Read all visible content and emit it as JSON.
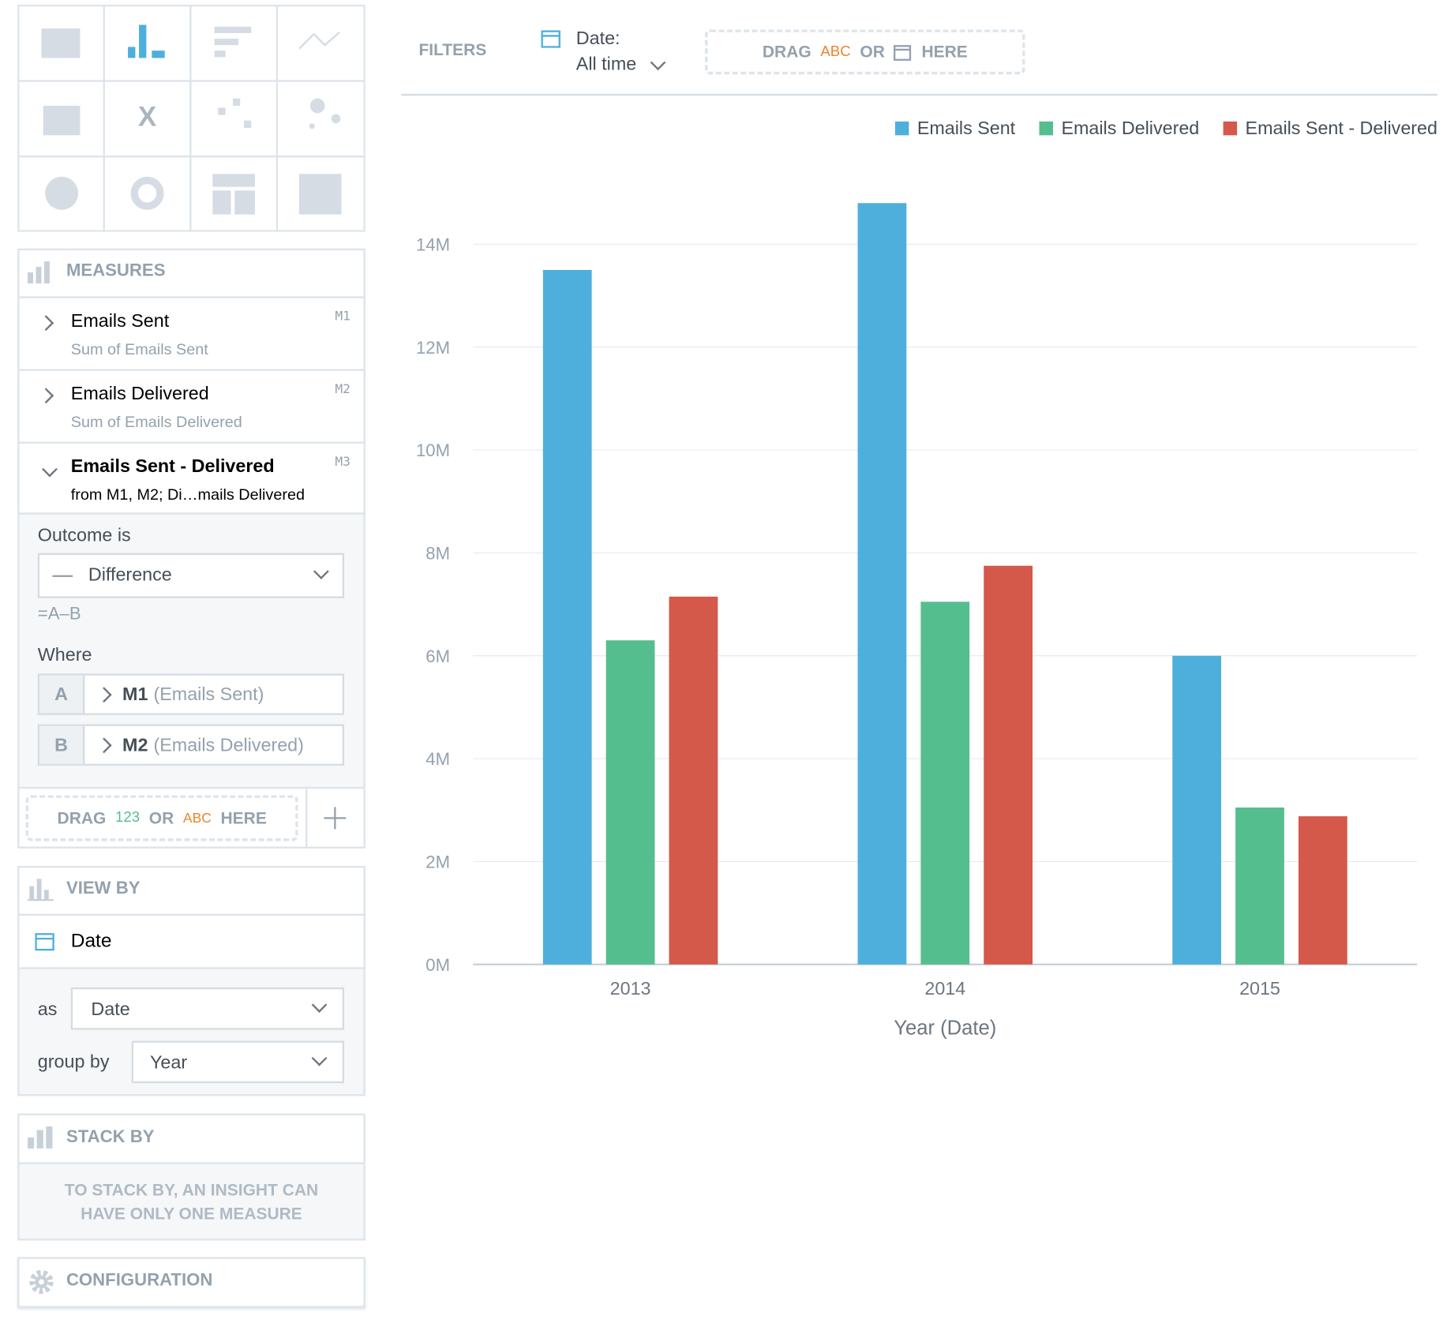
{
  "filters": {
    "label": "FILTERS",
    "date_label": "Date:",
    "date_value": "All time",
    "drag": [
      "DRAG",
      "ABC",
      "OR",
      "HERE"
    ]
  },
  "measures": {
    "title": "MEASURES",
    "items": [
      {
        "name": "Emails Sent",
        "detail": "Sum of Emails Sent",
        "id": "M1"
      },
      {
        "name": "Emails Delivered",
        "detail": "Sum of Emails Delivered",
        "id": "M2"
      },
      {
        "name": "Emails Sent - Delivered",
        "detail": "from M1, M2; Di…mails Delivered",
        "id": "M3"
      }
    ],
    "outcome_label": "Outcome is",
    "outcome": "Difference",
    "formula": "=A–B",
    "where_label": "Where",
    "where": [
      {
        "letter": "A",
        "id": "M1",
        "name": "(Emails Sent)"
      },
      {
        "letter": "B",
        "id": "M2",
        "name": "(Emails Delivered)"
      }
    ],
    "drag": [
      "DRAG",
      "123",
      "OR",
      "ABC",
      "HERE"
    ]
  },
  "view_by": {
    "title": "VIEW BY",
    "item": "Date",
    "as_label": "as",
    "as_value": "Date",
    "group_label": "group by",
    "group_value": "Year"
  },
  "stack_by": {
    "title": "STACK BY",
    "note": [
      "TO STACK BY, AN INSIGHT CAN",
      "HAVE ONLY ONE MEASURE"
    ]
  },
  "configuration": {
    "title": "CONFIGURATION"
  },
  "chart_data": {
    "type": "bar",
    "x_label": "Year (Date)",
    "categories": [
      "2013",
      "2014",
      "2015"
    ],
    "series": [
      {
        "name": "Emails Sent",
        "color": "#4eafdd",
        "values": [
          13500000,
          14800000,
          6000000
        ]
      },
      {
        "name": "Emails Delivered",
        "color": "#55be8e",
        "values": [
          6300000,
          7050000,
          3050000
        ]
      },
      {
        "name": "Emails Sent - Delivered",
        "color": "#d4594b",
        "values": [
          7150000,
          7750000,
          2880000
        ]
      }
    ],
    "ylim": [
      0,
      16000000
    ],
    "yticks": [
      {
        "value": 0,
        "label": "0M"
      },
      {
        "value": 2000000,
        "label": "2M"
      },
      {
        "value": 4000000,
        "label": "4M"
      },
      {
        "value": 6000000,
        "label": "6M"
      },
      {
        "value": 8000000,
        "label": "8M"
      },
      {
        "value": 10000000,
        "label": "10M"
      },
      {
        "value": 12000000,
        "label": "12M"
      },
      {
        "value": 14000000,
        "label": "14M"
      }
    ],
    "grid": true,
    "legend": "top-right"
  }
}
